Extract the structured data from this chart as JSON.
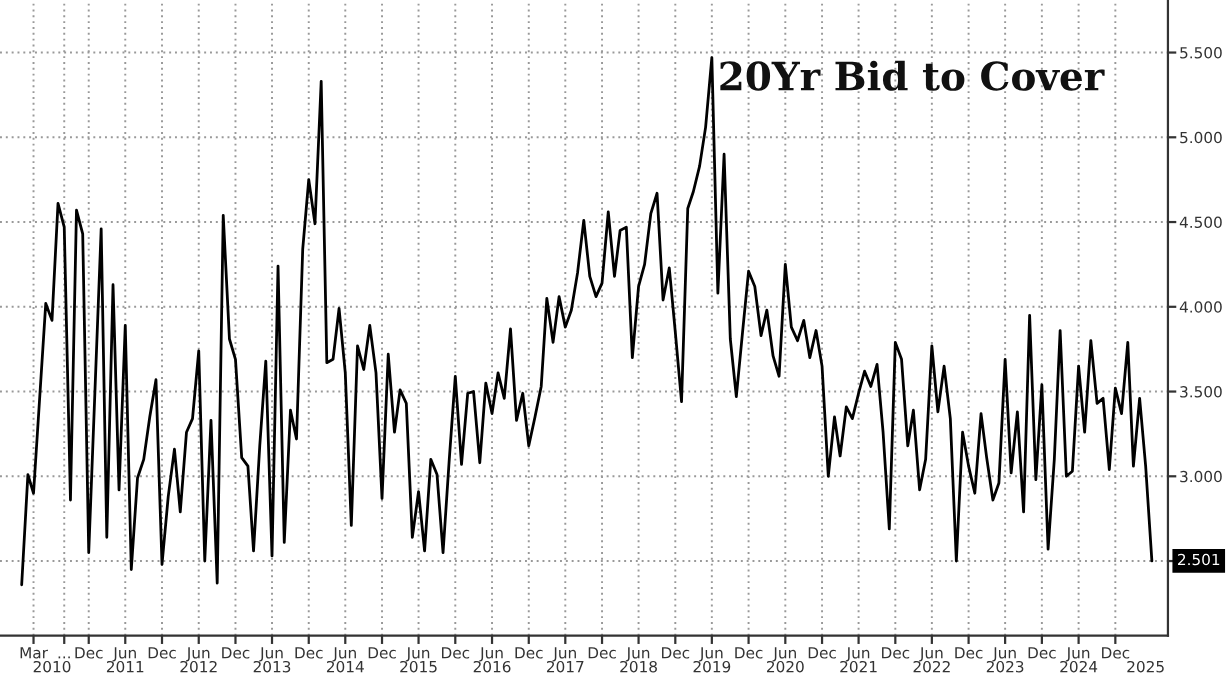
{
  "chart_data": {
    "type": "line",
    "title": "20Yr Bid to Cover",
    "series": [
      {
        "color": "#000000",
        "x": [
          "2010-01",
          "2010-02",
          "2010-03",
          "2010-05",
          "2010-06",
          "2010-07",
          "2010-08",
          "2010-09",
          "2010-10",
          "2010-11",
          "2010-12",
          "2011-02",
          "2011-03",
          "2011-04",
          "2011-05",
          "2011-06",
          "2011-07",
          "2011-08",
          "2011-09",
          "2011-10",
          "2011-11",
          "2011-12",
          "2012-01",
          "2012-02",
          "2012-03",
          "2012-04",
          "2012-05",
          "2012-06",
          "2012-07",
          "2012-08",
          "2012-09",
          "2012-10",
          "2012-11",
          "2012-12",
          "2013-01",
          "2013-02",
          "2013-03",
          "2013-04",
          "2013-05",
          "2013-06",
          "2013-07",
          "2013-08",
          "2013-09",
          "2013-10",
          "2013-11",
          "2013-12",
          "2014-01",
          "2014-02",
          "2014-03",
          "2014-04",
          "2014-05",
          "2014-06",
          "2014-07",
          "2014-08",
          "2014-09",
          "2014-10",
          "2014-11",
          "2014-12",
          "2015-01",
          "2015-02",
          "2015-03",
          "2015-04",
          "2015-05",
          "2015-06",
          "2015-07",
          "2015-08",
          "2015-09",
          "2015-10",
          "2015-11",
          "2015-12",
          "2016-01",
          "2016-02",
          "2016-03",
          "2016-04",
          "2016-05",
          "2016-06",
          "2016-07",
          "2016-08",
          "2016-09",
          "2016-10",
          "2016-11",
          "2016-12",
          "2017-01",
          "2017-02",
          "2017-03",
          "2017-04",
          "2017-05",
          "2017-06",
          "2017-07",
          "2017-08",
          "2017-09",
          "2017-10",
          "2017-11",
          "2017-12",
          "2018-01",
          "2018-02",
          "2018-03",
          "2018-04",
          "2018-05",
          "2018-06",
          "2018-07",
          "2018-08",
          "2018-09",
          "2018-10",
          "2018-11",
          "2018-12",
          "2019-01",
          "2019-02",
          "2019-03",
          "2019-04",
          "2019-05",
          "2019-06",
          "2019-07",
          "2019-08",
          "2019-09",
          "2019-10",
          "2019-11",
          "2019-12",
          "2020-01",
          "2020-02",
          "2020-03",
          "2020-04",
          "2020-05",
          "2020-06",
          "2020-07",
          "2020-08",
          "2020-09",
          "2020-10",
          "2020-11",
          "2020-12",
          "2021-01",
          "2021-02",
          "2021-03",
          "2021-04",
          "2021-05",
          "2021-06",
          "2021-07",
          "2021-08",
          "2021-09",
          "2021-10",
          "2021-11",
          "2021-12",
          "2022-01",
          "2022-02",
          "2022-03",
          "2022-04",
          "2022-05",
          "2022-06",
          "2022-07",
          "2022-08",
          "2022-09",
          "2022-10",
          "2022-11",
          "2022-12",
          "2023-01",
          "2023-02",
          "2023-03",
          "2023-04",
          "2023-05",
          "2023-06",
          "2023-07",
          "2023-08",
          "2023-09",
          "2023-10",
          "2023-11",
          "2023-12",
          "2024-01",
          "2024-02",
          "2024-03",
          "2024-04",
          "2024-05",
          "2024-06",
          "2024-07",
          "2024-08",
          "2024-09",
          "2024-10",
          "2024-11",
          "2024-12",
          "2025-01",
          "2025-02",
          "2025-03",
          "2025-04",
          "2025-05",
          "2025-06"
        ],
        "values": [
          2.36,
          3.01,
          2.9,
          4.02,
          3.92,
          4.61,
          4.47,
          2.86,
          4.57,
          4.43,
          2.55,
          4.46,
          2.64,
          4.13,
          2.92,
          3.89,
          2.45,
          2.99,
          3.1,
          3.35,
          3.57,
          2.48,
          2.88,
          3.16,
          2.79,
          3.26,
          3.34,
          3.74,
          2.5,
          3.33,
          2.37,
          4.54,
          3.81,
          3.69,
          3.11,
          3.06,
          2.56,
          3.18,
          3.68,
          2.53,
          4.24,
          2.61,
          3.39,
          3.22,
          4.34,
          4.75,
          4.49,
          5.33,
          3.67,
          3.69,
          3.99,
          3.61,
          2.71,
          3.77,
          3.63,
          3.89,
          3.61,
          2.87,
          3.72,
          3.26,
          3.51,
          3.43,
          2.64,
          2.91,
          2.56,
          3.1,
          3.01,
          2.55,
          3.1,
          3.59,
          3.07,
          3.49,
          3.5,
          3.08,
          3.55,
          3.37,
          3.61,
          3.46,
          3.87,
          3.33,
          3.49,
          3.18,
          3.35,
          3.53,
          4.05,
          3.79,
          4.06,
          3.88,
          3.98,
          4.2,
          4.51,
          4.18,
          4.06,
          4.14,
          4.56,
          4.18,
          4.45,
          4.47,
          3.7,
          4.12,
          4.25,
          4.55,
          4.67,
          4.04,
          4.23,
          3.85,
          3.44,
          4.58,
          4.68,
          4.83,
          5.06,
          5.47,
          4.08,
          4.9,
          3.81,
          3.47,
          3.85,
          4.21,
          4.12,
          3.83,
          3.98,
          3.71,
          3.59,
          4.25,
          3.88,
          3.8,
          3.92,
          3.7,
          3.86,
          3.65,
          3.0,
          3.35,
          3.12,
          3.41,
          3.34,
          3.49,
          3.62,
          3.53,
          3.66,
          3.26,
          2.69,
          3.79,
          3.69,
          3.18,
          3.39,
          2.92,
          3.1,
          3.77,
          3.38,
          3.65,
          3.34,
          2.5,
          3.26,
          3.06,
          2.9,
          3.37,
          3.11,
          2.86,
          2.96,
          3.69,
          3.02,
          3.38,
          2.79,
          3.95,
          2.98,
          3.54,
          2.57,
          3.1,
          3.86,
          3.0,
          3.03,
          3.65,
          3.26,
          3.8,
          3.43,
          3.46,
          3.04,
          3.52,
          3.37,
          3.79,
          3.06,
          3.46,
          3.06,
          2.501
        ]
      }
    ],
    "annotations": [
      {
        "text": "2.501",
        "x": "2025-06",
        "y": 2.501
      }
    ],
    "xlim": [
      "2009-09-15",
      "2025-08-20"
    ],
    "xticks": [
      {
        "value": "2010-03",
        "label": "Mar"
      },
      {
        "value": "2010-08",
        "label": "..."
      },
      {
        "value": "2010-12",
        "label": "Dec"
      },
      {
        "value": "2011-06",
        "label": "Jun"
      },
      {
        "value": "2011-12",
        "label": "Dec"
      },
      {
        "value": "2012-06",
        "label": "Jun"
      },
      {
        "value": "2012-12",
        "label": "Dec"
      },
      {
        "value": "2013-06",
        "label": "Jun"
      },
      {
        "value": "2013-12",
        "label": "Dec"
      },
      {
        "value": "2014-06",
        "label": "Jun"
      },
      {
        "value": "2014-12",
        "label": "Dec"
      },
      {
        "value": "2015-06",
        "label": "Jun"
      },
      {
        "value": "2015-12",
        "label": "Dec"
      },
      {
        "value": "2016-06",
        "label": "Jun"
      },
      {
        "value": "2016-12",
        "label": "Dec"
      },
      {
        "value": "2017-06",
        "label": "Jun"
      },
      {
        "value": "2017-12",
        "label": "Dec"
      },
      {
        "value": "2018-06",
        "label": "Jun"
      },
      {
        "value": "2018-12",
        "label": "Dec"
      },
      {
        "value": "2019-06",
        "label": "Jun"
      },
      {
        "value": "2019-12",
        "label": "Dec"
      },
      {
        "value": "2020-06",
        "label": "Jun"
      },
      {
        "value": "2020-12",
        "label": "Dec"
      },
      {
        "value": "2021-06",
        "label": "Jun"
      },
      {
        "value": "2021-12",
        "label": "Dec"
      },
      {
        "value": "2022-06",
        "label": "Jun"
      },
      {
        "value": "2022-12",
        "label": "Dec"
      },
      {
        "value": "2023-06",
        "label": "Jun"
      },
      {
        "value": "2023-12",
        "label": "Dec"
      },
      {
        "value": "2024-06",
        "label": "Jun"
      },
      {
        "value": "2024-12",
        "label": "Dec"
      }
    ],
    "x2lim": [
      "2009-09-15",
      "2025-08-20"
    ],
    "x2ticks": [
      {
        "value": "2010-06",
        "label": "2010"
      },
      {
        "value": "2011-06",
        "label": "2011"
      },
      {
        "value": "2012-06",
        "label": "2012"
      },
      {
        "value": "2013-06",
        "label": "2013"
      },
      {
        "value": "2014-06",
        "label": "2014"
      },
      {
        "value": "2015-06",
        "label": "2015"
      },
      {
        "value": "2016-06",
        "label": "2016"
      },
      {
        "value": "2017-06",
        "label": "2017"
      },
      {
        "value": "2018-06",
        "label": "2018"
      },
      {
        "value": "2019-06",
        "label": "2019"
      },
      {
        "value": "2020-06",
        "label": "2020"
      },
      {
        "value": "2021-06",
        "label": "2021"
      },
      {
        "value": "2022-06",
        "label": "2022"
      },
      {
        "value": "2023-06",
        "label": "2023"
      },
      {
        "value": "2024-06",
        "label": "2024"
      },
      {
        "value": "2025-05",
        "label": "2025"
      }
    ],
    "ylim": [
      2.06,
      5.81
    ],
    "yticks": [
      {
        "value": 2.5,
        "label": null
      },
      {
        "value": 3.0,
        "label": "3.000"
      },
      {
        "value": 3.5,
        "label": "3.500"
      },
      {
        "value": 4.0,
        "label": "4.000"
      },
      {
        "value": 4.5,
        "label": "4.500"
      },
      {
        "value": 5.0,
        "label": "5.000"
      },
      {
        "value": 5.5,
        "label": "5.500"
      }
    ],
    "grid": true,
    "legend": false,
    "line_style": "solid",
    "marker": "none"
  }
}
